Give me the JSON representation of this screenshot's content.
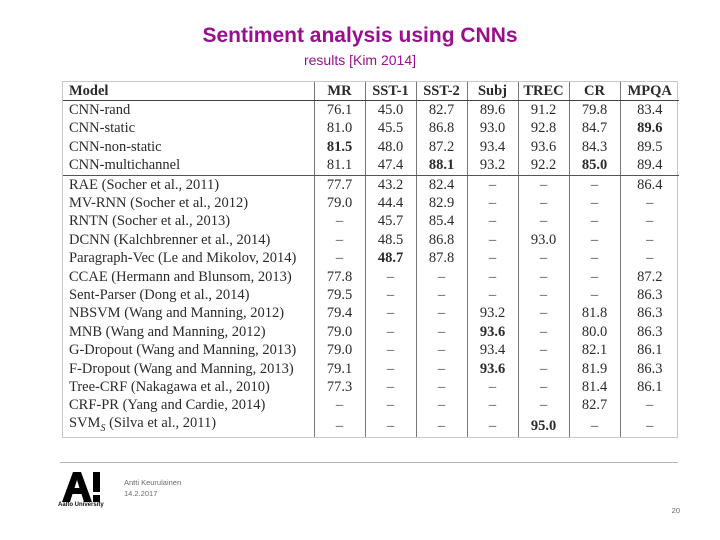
{
  "slide": {
    "title": "Sentiment analysis using CNNs",
    "subtitle": "results [Kim 2014]"
  },
  "table": {
    "columns": [
      "Model",
      "MR",
      "SST-1",
      "SST-2",
      "Subj",
      "TREC",
      "CR",
      "MPQA"
    ],
    "rows": [
      {
        "cells": [
          "CNN-rand",
          "76.1",
          "45.0",
          "82.7",
          "89.6",
          "91.2",
          "79.8",
          "83.4"
        ],
        "bold": [],
        "group_end": false
      },
      {
        "cells": [
          "CNN-static",
          "81.0",
          "45.5",
          "86.8",
          "93.0",
          "92.8",
          "84.7",
          "89.6"
        ],
        "bold": [
          7
        ],
        "group_end": false
      },
      {
        "cells": [
          "CNN-non-static",
          "81.5",
          "48.0",
          "87.2",
          "93.4",
          "93.6",
          "84.3",
          "89.5"
        ],
        "bold": [
          1
        ],
        "group_end": false
      },
      {
        "cells": [
          "CNN-multichannel",
          "81.1",
          "47.4",
          "88.1",
          "93.2",
          "92.2",
          "85.0",
          "89.4"
        ],
        "bold": [
          3,
          6
        ],
        "group_end": true
      },
      {
        "cells": [
          "RAE (Socher et al., 2011)",
          "77.7",
          "43.2",
          "82.4",
          "–",
          "–",
          "–",
          "86.4"
        ],
        "bold": [],
        "group_end": false
      },
      {
        "cells": [
          "MV-RNN (Socher et al., 2012)",
          "79.0",
          "44.4",
          "82.9",
          "–",
          "–",
          "–",
          "–"
        ],
        "bold": [],
        "group_end": false
      },
      {
        "cells": [
          "RNTN (Socher et al., 2013)",
          "–",
          "45.7",
          "85.4",
          "–",
          "–",
          "–",
          "–"
        ],
        "bold": [],
        "group_end": false
      },
      {
        "cells": [
          "DCNN (Kalchbrenner et al., 2014)",
          "–",
          "48.5",
          "86.8",
          "–",
          "93.0",
          "–",
          "–"
        ],
        "bold": [],
        "group_end": false
      },
      {
        "cells": [
          "Paragraph-Vec (Le and Mikolov, 2014)",
          "–",
          "48.7",
          "87.8",
          "–",
          "–",
          "–",
          "–"
        ],
        "bold": [
          2
        ],
        "group_end": false
      },
      {
        "cells": [
          "CCAE (Hermann and Blunsom, 2013)",
          "77.8",
          "–",
          "–",
          "–",
          "–",
          "–",
          "87.2"
        ],
        "bold": [],
        "group_end": false
      },
      {
        "cells": [
          "Sent-Parser (Dong et al., 2014)",
          "79.5",
          "–",
          "–",
          "–",
          "–",
          "–",
          "86.3"
        ],
        "bold": [],
        "group_end": false
      },
      {
        "cells": [
          "NBSVM (Wang and Manning, 2012)",
          "79.4",
          "–",
          "–",
          "93.2",
          "–",
          "81.8",
          "86.3"
        ],
        "bold": [],
        "group_end": false
      },
      {
        "cells": [
          "MNB (Wang and Manning, 2012)",
          "79.0",
          "–",
          "–",
          "93.6",
          "–",
          "80.0",
          "86.3"
        ],
        "bold": [
          4
        ],
        "group_end": false
      },
      {
        "cells": [
          "G-Dropout (Wang and Manning, 2013)",
          "79.0",
          "–",
          "–",
          "93.4",
          "–",
          "82.1",
          "86.1"
        ],
        "bold": [],
        "group_end": false
      },
      {
        "cells": [
          "F-Dropout (Wang and Manning, 2013)",
          "79.1",
          "–",
          "–",
          "93.6",
          "–",
          "81.9",
          "86.3"
        ],
        "bold": [
          4
        ],
        "group_end": false
      },
      {
        "cells": [
          "Tree-CRF (Nakagawa et al., 2010)",
          "77.3",
          "–",
          "–",
          "–",
          "–",
          "81.4",
          "86.1"
        ],
        "bold": [],
        "group_end": false
      },
      {
        "cells": [
          "CRF-PR (Yang and Cardie, 2014)",
          "–",
          "–",
          "–",
          "–",
          "–",
          "82.7",
          "–"
        ],
        "bold": [],
        "group_end": false
      },
      {
        "cells": [
          "SVM_S (Silva et al., 2011)",
          "–",
          "–",
          "–",
          "–",
          "95.0",
          "–",
          "–"
        ],
        "bold": [
          5
        ],
        "group_end": false
      }
    ]
  },
  "footer": {
    "logo_text": "A!",
    "university": "Aalto University",
    "author": "Antti Keurulainen",
    "date": "14.2.2017",
    "page_number": "20"
  },
  "colors": {
    "title": "#9a0f8f",
    "logo": "#000000"
  }
}
